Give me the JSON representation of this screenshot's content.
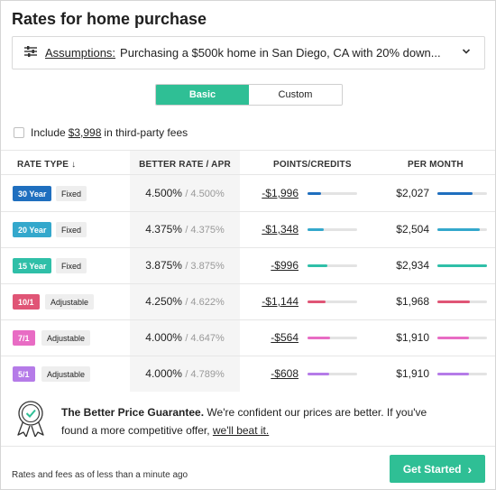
{
  "title": "Rates for home purchase",
  "assumptions": {
    "icon": "sliders-icon",
    "label": "Assumptions:",
    "text": "Purchasing a $500k home in San Diego, CA with 20% down..."
  },
  "toggle": {
    "basic": "Basic",
    "custom": "Custom",
    "selected": "Basic"
  },
  "fees": {
    "prefix": "Include",
    "amount": "$3,998",
    "suffix": "in third-party fees",
    "checked": false
  },
  "columns": {
    "rate_type": "RATE TYPE",
    "rate_type_arrow": "↓",
    "better_rate": "BETTER RATE / APR",
    "points": "POINTS/CREDITS",
    "per_month": "PER MONTH"
  },
  "rows": [
    {
      "term": "30 Year",
      "type": "Fixed",
      "rate": "4.500%",
      "apr": "/ 4.500%",
      "points": "-$1,996",
      "month": "$2,027",
      "color": "#1f6fbf",
      "points_pct": 28,
      "month_pct": 70
    },
    {
      "term": "20 Year",
      "type": "Fixed",
      "rate": "4.375%",
      "apr": "/ 4.375%",
      "points": "-$1,348",
      "month": "$2,504",
      "color": "#34a8cc",
      "points_pct": 32,
      "month_pct": 85
    },
    {
      "term": "15 Year",
      "type": "Fixed",
      "rate": "3.875%",
      "apr": "/ 3.875%",
      "points": "-$996",
      "month": "$2,934",
      "color": "#2fbfa8",
      "points_pct": 40,
      "month_pct": 100
    },
    {
      "term": "10/1",
      "type": "Adjustable",
      "rate": "4.250%",
      "apr": "/ 4.622%",
      "points": "-$1,144",
      "month": "$1,968",
      "color": "#e05576",
      "points_pct": 36,
      "month_pct": 66
    },
    {
      "term": "7/1",
      "type": "Adjustable",
      "rate": "4.000%",
      "apr": "/ 4.647%",
      "points": "-$564",
      "month": "$1,910",
      "color": "#e86cc4",
      "points_pct": 46,
      "month_pct": 64
    },
    {
      "term": "5/1",
      "type": "Adjustable",
      "rate": "4.000%",
      "apr": "/ 4.789%",
      "points": "-$608",
      "month": "$1,910",
      "color": "#b57be8",
      "points_pct": 44,
      "month_pct": 64
    }
  ],
  "guarantee": {
    "icon": "award-ribbon-icon",
    "heading": "The Better Price Guarantee.",
    "text": "We're confident our prices are better. If you've found a more competitive offer,",
    "link": "we'll beat it."
  },
  "footer": {
    "note": "Rates and fees as of less than a minute ago"
  },
  "cta": {
    "label": "Get Started",
    "arrow": "›"
  },
  "colors": {
    "accent": "#2fbf95"
  }
}
